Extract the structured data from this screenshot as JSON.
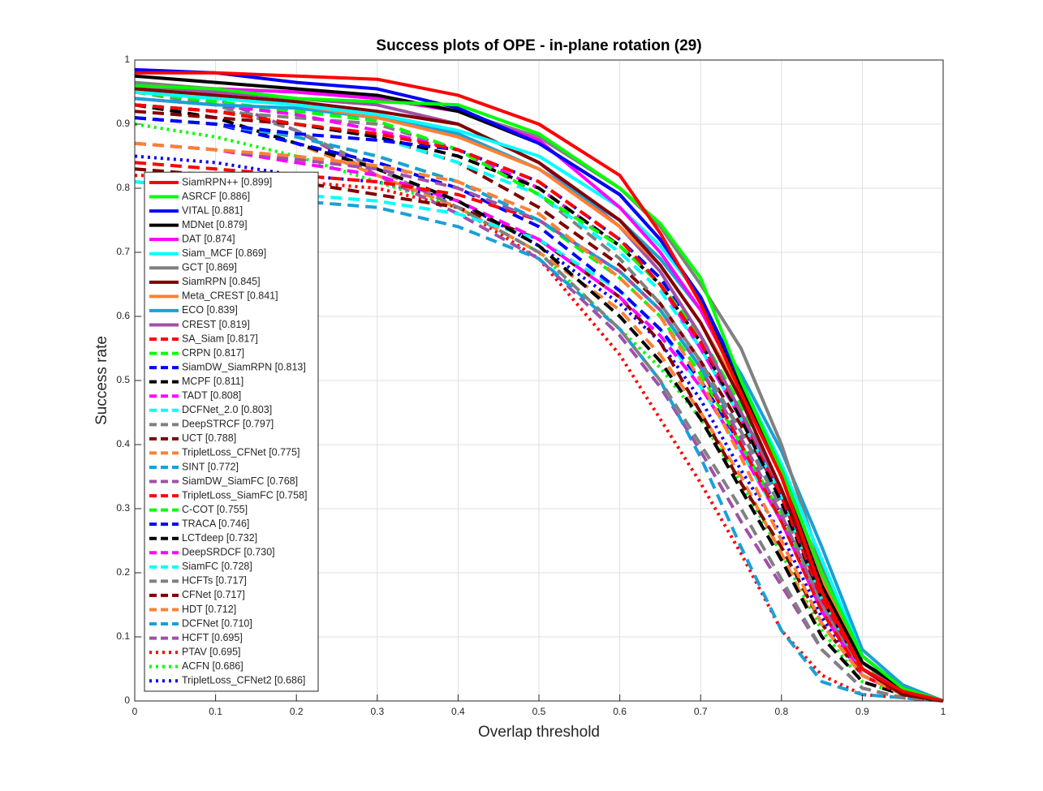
{
  "chart_data": {
    "type": "line",
    "title": "Success plots of OPE - in-plane rotation (29)",
    "x_label": "Overlap threshold",
    "y_label": "Success rate",
    "x": [
      0,
      0.1,
      0.2,
      0.3,
      0.4,
      0.5,
      0.6,
      0.65,
      0.7,
      0.75,
      0.8,
      0.85,
      0.9,
      0.95,
      1
    ],
    "xlim": [
      0,
      1
    ],
    "ylim": [
      0,
      1
    ],
    "xticks": [
      0,
      0.1,
      0.2,
      0.3,
      0.4,
      0.5,
      0.6,
      0.7,
      0.8,
      0.9,
      1
    ],
    "yticks": [
      0,
      0.1,
      0.2,
      0.3,
      0.4,
      0.5,
      0.6,
      0.7,
      0.8,
      0.9,
      1
    ],
    "grid": true,
    "legend": "lower-left",
    "series": [
      {
        "name": "SiamRPN++ [0.899]",
        "color": "#ff0000",
        "line_style": "solid",
        "values": [
          0.98,
          0.98,
          0.975,
          0.97,
          0.945,
          0.9,
          0.82,
          0.73,
          0.62,
          0.48,
          0.35,
          0.17,
          0.05,
          0.015,
          0
        ]
      },
      {
        "name": "ASRCF [0.886]",
        "color": "#00ff00",
        "line_style": "solid",
        "values": [
          0.96,
          0.955,
          0.94,
          0.935,
          0.93,
          0.885,
          0.8,
          0.745,
          0.66,
          0.5,
          0.36,
          0.2,
          0.07,
          0.02,
          0
        ]
      },
      {
        "name": "VITAL [0.881]",
        "color": "#0000ff",
        "line_style": "solid",
        "values": [
          0.985,
          0.98,
          0.965,
          0.955,
          0.925,
          0.87,
          0.79,
          0.72,
          0.63,
          0.5,
          0.36,
          0.2,
          0.07,
          0.02,
          0
        ]
      },
      {
        "name": "MDNet [0.879]",
        "color": "#000000",
        "line_style": "solid",
        "values": [
          0.975,
          0.965,
          0.955,
          0.945,
          0.92,
          0.87,
          0.79,
          0.72,
          0.63,
          0.49,
          0.35,
          0.18,
          0.06,
          0.02,
          0
        ]
      },
      {
        "name": "DAT [0.874]",
        "color": "#ff00ff",
        "line_style": "solid",
        "values": [
          0.96,
          0.955,
          0.95,
          0.94,
          0.92,
          0.875,
          0.77,
          0.7,
          0.61,
          0.49,
          0.36,
          0.2,
          0.07,
          0.02,
          0
        ]
      },
      {
        "name": "Siam_MCF [0.869]",
        "color": "#00ffff",
        "line_style": "solid",
        "values": [
          0.95,
          0.94,
          0.93,
          0.915,
          0.89,
          0.85,
          0.77,
          0.71,
          0.63,
          0.5,
          0.37,
          0.22,
          0.07,
          0.02,
          0
        ]
      },
      {
        "name": "GCT [0.869]",
        "color": "#808080",
        "line_style": "solid",
        "values": [
          0.965,
          0.955,
          0.95,
          0.94,
          0.92,
          0.88,
          0.8,
          0.74,
          0.65,
          0.55,
          0.4,
          0.21,
          0.07,
          0.02,
          0
        ]
      },
      {
        "name": "SiamRPN [0.845]",
        "color": "#800000",
        "line_style": "solid",
        "values": [
          0.955,
          0.945,
          0.935,
          0.92,
          0.9,
          0.84,
          0.75,
          0.68,
          0.59,
          0.47,
          0.33,
          0.17,
          0.05,
          0.01,
          0
        ]
      },
      {
        "name": "Meta_CREST [0.841]",
        "color": "#ff8033",
        "line_style": "solid",
        "values": [
          0.95,
          0.94,
          0.93,
          0.91,
          0.88,
          0.83,
          0.74,
          0.68,
          0.59,
          0.48,
          0.35,
          0.19,
          0.06,
          0.02,
          0
        ]
      },
      {
        "name": "ECO [0.839]",
        "color": "#1aa0d8",
        "line_style": "solid",
        "values": [
          0.94,
          0.93,
          0.925,
          0.91,
          0.885,
          0.83,
          0.75,
          0.69,
          0.61,
          0.51,
          0.39,
          0.24,
          0.08,
          0.025,
          0
        ]
      },
      {
        "name": "CREST [0.819]",
        "color": "#a050a8",
        "line_style": "solid",
        "values": [
          0.96,
          0.95,
          0.94,
          0.93,
          0.9,
          0.84,
          0.74,
          0.67,
          0.57,
          0.45,
          0.33,
          0.18,
          0.06,
          0.015,
          0
        ]
      },
      {
        "name": "SA_Siam [0.817]",
        "color": "#ff0000",
        "line_style": "dashed",
        "values": [
          0.93,
          0.92,
          0.9,
          0.885,
          0.86,
          0.81,
          0.72,
          0.65,
          0.56,
          0.45,
          0.32,
          0.16,
          0.05,
          0.01,
          0
        ]
      },
      {
        "name": "CRPN [0.817]",
        "color": "#00ff00",
        "line_style": "dashed",
        "values": [
          0.95,
          0.935,
          0.92,
          0.905,
          0.86,
          0.79,
          0.71,
          0.65,
          0.57,
          0.46,
          0.33,
          0.18,
          0.06,
          0.01,
          0
        ]
      },
      {
        "name": "SiamDW_SiamRPN [0.813]",
        "color": "#0000ff",
        "line_style": "dashed",
        "values": [
          0.91,
          0.9,
          0.885,
          0.875,
          0.86,
          0.81,
          0.72,
          0.66,
          0.57,
          0.45,
          0.32,
          0.16,
          0.05,
          0.01,
          0
        ]
      },
      {
        "name": "MCPF [0.811]",
        "color": "#000000",
        "line_style": "dashed",
        "values": [
          0.93,
          0.92,
          0.9,
          0.88,
          0.85,
          0.8,
          0.71,
          0.65,
          0.56,
          0.44,
          0.31,
          0.16,
          0.05,
          0.01,
          0
        ]
      },
      {
        "name": "TADT [0.808]",
        "color": "#ff00ff",
        "line_style": "dashed",
        "values": [
          0.94,
          0.93,
          0.915,
          0.89,
          0.86,
          0.8,
          0.71,
          0.65,
          0.55,
          0.44,
          0.32,
          0.17,
          0.05,
          0.01,
          0
        ]
      },
      {
        "name": "DCFNet_2.0 [0.803]",
        "color": "#00ffff",
        "line_style": "dashed",
        "values": [
          0.93,
          0.92,
          0.9,
          0.88,
          0.84,
          0.79,
          0.7,
          0.64,
          0.55,
          0.44,
          0.32,
          0.16,
          0.05,
          0.01,
          0
        ]
      },
      {
        "name": "DeepSTRCF [0.797]",
        "color": "#808080",
        "line_style": "dashed",
        "values": [
          0.93,
          0.92,
          0.91,
          0.9,
          0.86,
          0.79,
          0.69,
          0.62,
          0.53,
          0.42,
          0.3,
          0.15,
          0.05,
          0.01,
          0
        ]
      },
      {
        "name": "UCT [0.788]",
        "color": "#800000",
        "line_style": "dashed",
        "values": [
          0.92,
          0.91,
          0.9,
          0.88,
          0.84,
          0.77,
          0.68,
          0.62,
          0.53,
          0.43,
          0.32,
          0.16,
          0.05,
          0.01,
          0
        ]
      },
      {
        "name": "TripletLoss_CFNet [0.775]",
        "color": "#ff8033",
        "line_style": "dashed",
        "values": [
          0.87,
          0.86,
          0.85,
          0.835,
          0.81,
          0.76,
          0.66,
          0.6,
          0.5,
          0.38,
          0.25,
          0.12,
          0.04,
          0.01,
          0
        ]
      },
      {
        "name": "SINT [0.772]",
        "color": "#1aa0d8",
        "line_style": "dashed",
        "values": [
          0.91,
          0.9,
          0.88,
          0.85,
          0.81,
          0.75,
          0.67,
          0.61,
          0.52,
          0.42,
          0.31,
          0.16,
          0.05,
          0.01,
          0
        ]
      },
      {
        "name": "SiamDW_SiamFC [0.768]",
        "color": "#a050a8",
        "line_style": "dashed",
        "values": [
          0.87,
          0.86,
          0.845,
          0.83,
          0.8,
          0.75,
          0.67,
          0.61,
          0.52,
          0.41,
          0.29,
          0.15,
          0.05,
          0.01,
          0
        ]
      },
      {
        "name": "TripletLoss_SiamFC [0.758]",
        "color": "#ff0000",
        "line_style": "dashed",
        "values": [
          0.84,
          0.83,
          0.82,
          0.81,
          0.79,
          0.75,
          0.67,
          0.61,
          0.52,
          0.4,
          0.28,
          0.14,
          0.04,
          0.01,
          0
        ]
      },
      {
        "name": "C-COT [0.755]",
        "color": "#00ff00",
        "line_style": "dashed",
        "values": [
          0.91,
          0.9,
          0.88,
          0.85,
          0.81,
          0.75,
          0.66,
          0.6,
          0.51,
          0.4,
          0.29,
          0.15,
          0.05,
          0.01,
          0
        ]
      },
      {
        "name": "TRACA [0.746]",
        "color": "#0000ff",
        "line_style": "dashed",
        "values": [
          0.91,
          0.9,
          0.87,
          0.84,
          0.8,
          0.74,
          0.64,
          0.58,
          0.5,
          0.4,
          0.29,
          0.15,
          0.05,
          0.01,
          0
        ]
      },
      {
        "name": "LCTdeep [0.732]",
        "color": "#000000",
        "line_style": "dashed",
        "values": [
          0.93,
          0.91,
          0.87,
          0.83,
          0.78,
          0.71,
          0.6,
          0.53,
          0.44,
          0.33,
          0.22,
          0.1,
          0.03,
          0.01,
          0
        ]
      },
      {
        "name": "DeepSRDCF [0.730]",
        "color": "#ff00ff",
        "line_style": "dashed",
        "values": [
          0.87,
          0.86,
          0.84,
          0.82,
          0.78,
          0.72,
          0.63,
          0.57,
          0.49,
          0.39,
          0.28,
          0.14,
          0.04,
          0.01,
          0
        ]
      },
      {
        "name": "SiamFC [0.728]",
        "color": "#00ffff",
        "line_style": "dashed",
        "values": [
          0.81,
          0.8,
          0.79,
          0.78,
          0.76,
          0.72,
          0.64,
          0.58,
          0.49,
          0.39,
          0.28,
          0.14,
          0.04,
          0.01,
          0
        ]
      },
      {
        "name": "HCFTs [0.717]",
        "color": "#808080",
        "line_style": "dashed",
        "values": [
          0.95,
          0.93,
          0.89,
          0.83,
          0.77,
          0.7,
          0.58,
          0.5,
          0.4,
          0.3,
          0.19,
          0.08,
          0.02,
          0.005,
          0
        ]
      },
      {
        "name": "CFNet [0.717]",
        "color": "#800000",
        "line_style": "dashed",
        "values": [
          0.83,
          0.82,
          0.81,
          0.79,
          0.77,
          0.72,
          0.63,
          0.56,
          0.45,
          0.34,
          0.24,
          0.12,
          0.04,
          0.01,
          0
        ]
      },
      {
        "name": "HDT [0.712]",
        "color": "#ff8033",
        "line_style": "dashed",
        "values": [
          0.93,
          0.91,
          0.87,
          0.82,
          0.77,
          0.7,
          0.61,
          0.54,
          0.45,
          0.35,
          0.23,
          0.1,
          0.03,
          0.01,
          0
        ]
      },
      {
        "name": "DCFNet [0.710]",
        "color": "#1aa0d8",
        "line_style": "dashed",
        "values": [
          0.81,
          0.8,
          0.78,
          0.77,
          0.74,
          0.69,
          0.58,
          0.5,
          0.38,
          0.24,
          0.11,
          0.03,
          0.01,
          0.005,
          0
        ]
      },
      {
        "name": "HCFT [0.695]",
        "color": "#a050a8",
        "line_style": "dashed",
        "values": [
          0.96,
          0.94,
          0.89,
          0.82,
          0.76,
          0.69,
          0.57,
          0.49,
          0.39,
          0.28,
          0.18,
          0.08,
          0.02,
          0.005,
          0
        ]
      },
      {
        "name": "PTAV [0.695]",
        "color": "#ff0000",
        "line_style": "dotted",
        "values": [
          0.82,
          0.82,
          0.81,
          0.8,
          0.77,
          0.69,
          0.54,
          0.44,
          0.34,
          0.23,
          0.11,
          0.04,
          0.01,
          0.005,
          0
        ]
      },
      {
        "name": "ACFN [0.686]",
        "color": "#00ff00",
        "line_style": "dotted",
        "values": [
          0.9,
          0.88,
          0.85,
          0.81,
          0.77,
          0.7,
          0.58,
          0.52,
          0.44,
          0.34,
          0.23,
          0.11,
          0.03,
          0.01,
          0
        ]
      },
      {
        "name": "TripletLoss_CFNet2 [0.686]",
        "color": "#0000ff",
        "line_style": "dotted",
        "values": [
          0.85,
          0.84,
          0.82,
          0.81,
          0.78,
          0.71,
          0.62,
          0.56,
          0.47,
          0.36,
          0.26,
          0.13,
          0.04,
          0.01,
          0
        ]
      }
    ]
  }
}
